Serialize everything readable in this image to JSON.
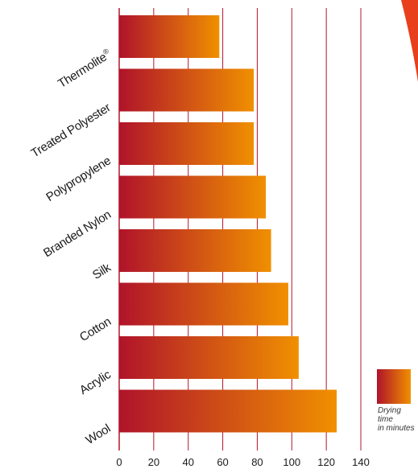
{
  "chart_data": {
    "type": "bar",
    "orientation": "horizontal",
    "categories": [
      "Thermolite",
      "Treated Polyester",
      "Polypropylene",
      "Branded Nylon",
      "Silk",
      "Cotton",
      "Acrylic",
      "Wool"
    ],
    "category_marks": {
      "Thermolite": "®"
    },
    "values": [
      58,
      78,
      78,
      85,
      88,
      98,
      104,
      126
    ],
    "xlim": [
      0,
      140
    ],
    "xticks": [
      0,
      20,
      40,
      60,
      80,
      100,
      120,
      140
    ],
    "grid": true,
    "legend": {
      "placement": "bottom-right",
      "lines": [
        "Drying",
        "time",
        "in minutes"
      ]
    }
  },
  "colors": {
    "bar_start": "#b0132a",
    "bar_end": "#f09000",
    "grid": "#b01828",
    "accent_shape": "#e8401c"
  }
}
